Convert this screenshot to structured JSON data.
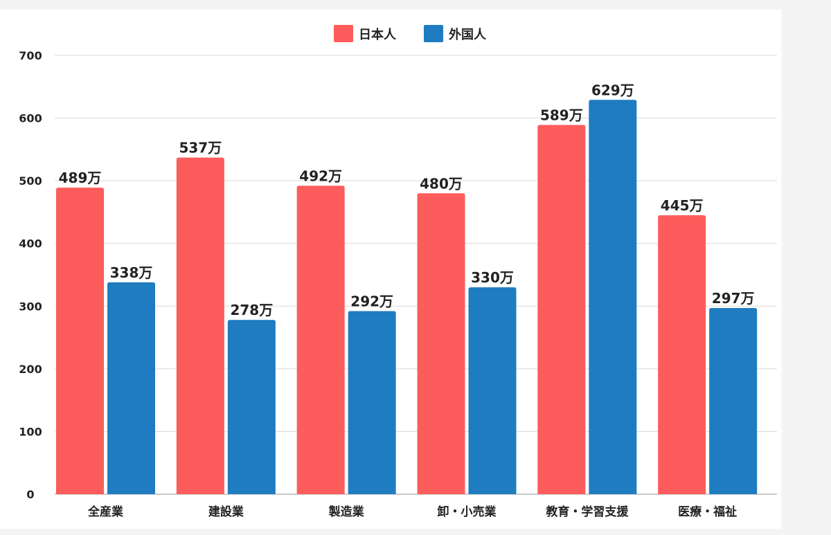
{
  "chart_data": {
    "type": "bar",
    "title": "",
    "xlabel": "",
    "ylabel": "",
    "ylim": [
      0,
      700
    ],
    "yticks": [
      0,
      100,
      200,
      300,
      400,
      500,
      600,
      700
    ],
    "grid": true,
    "legend_position": "top-center",
    "categories": [
      "全産業",
      "建設業",
      "製造業",
      "卸・小売業",
      "教育・学習支援",
      "医療・福祉"
    ],
    "series": [
      {
        "name": "日本人",
        "color": "#fd5c5c",
        "values": [
          489,
          537,
          492,
          480,
          589,
          445
        ],
        "labels": [
          "489万",
          "537万",
          "492万",
          "480万",
          "589万",
          "445万"
        ]
      },
      {
        "name": "外国人",
        "color": "#1f7cc1",
        "values": [
          338,
          278,
          292,
          330,
          629,
          297
        ],
        "labels": [
          "338万",
          "278万",
          "292万",
          "330万",
          "629万",
          "297万"
        ]
      }
    ]
  }
}
